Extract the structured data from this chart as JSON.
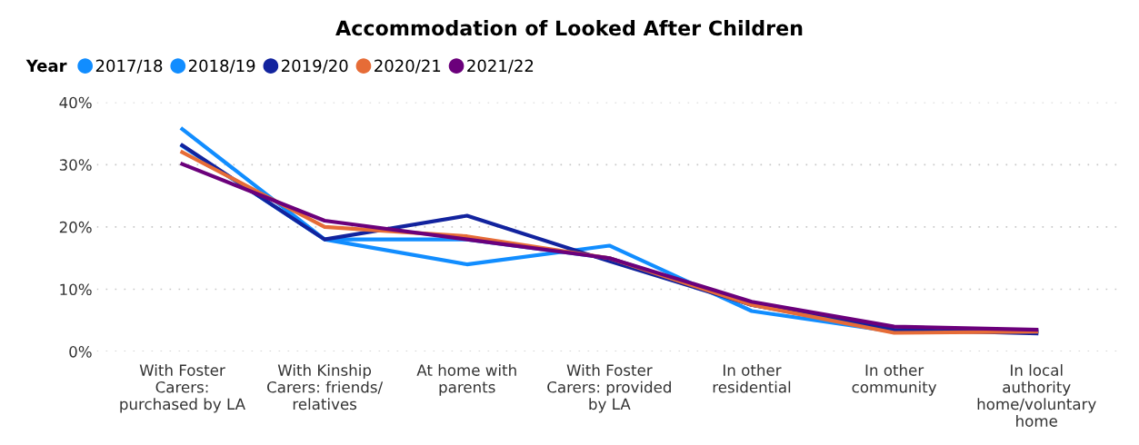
{
  "chart_data": {
    "type": "line",
    "title": "Accommodation of Looked After Children",
    "legend_title": "Year",
    "categories": [
      "With Foster Carers: purchased by LA",
      "With Kinship Carers: friends/relatives",
      "At home with parents",
      "With Foster Carers: provided by LA",
      "In other residential",
      "In other community",
      "In local authority home/voluntary home"
    ],
    "series": [
      {
        "name": "2017/18",
        "color": "#118dff",
        "values": [
          35.7,
          18,
          14,
          17,
          6.5,
          3.2,
          3.2
        ]
      },
      {
        "name": "2018/19",
        "color": "#118dff",
        "values": [
          33,
          18,
          18,
          15,
          7.5,
          3.2,
          3.3
        ]
      },
      {
        "name": "2019/20",
        "color": "#12239e",
        "values": [
          33.1,
          18,
          21.8,
          14.5,
          7.5,
          3.5,
          2.9
        ]
      },
      {
        "name": "2020/21",
        "color": "#e66c37",
        "values": [
          32,
          20,
          18.5,
          15,
          7.5,
          3,
          3.2
        ]
      },
      {
        "name": "2021/22",
        "color": "#6b007b",
        "values": [
          30.1,
          21,
          18,
          15,
          8,
          4,
          3.5
        ]
      }
    ],
    "ylim": [
      0,
      40
    ],
    "yticks": [
      {
        "value": 0,
        "label": "0%"
      },
      {
        "value": 10,
        "label": "10%"
      },
      {
        "value": 20,
        "label": "20%"
      },
      {
        "value": 30,
        "label": "30%"
      },
      {
        "value": 40,
        "label": "40%"
      }
    ],
    "grid": "y",
    "legend": "top left",
    "marker": "none",
    "line_style": "solid"
  }
}
